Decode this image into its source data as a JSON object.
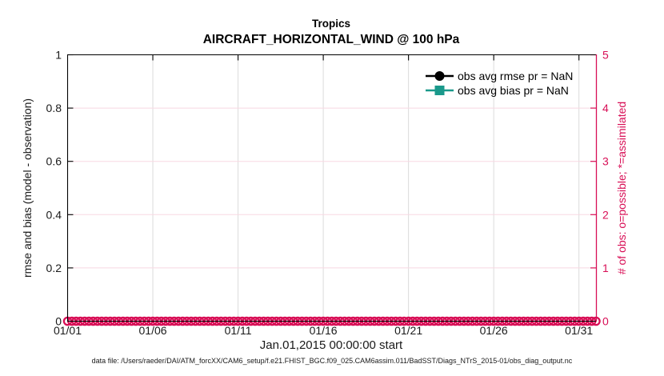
{
  "figure": {
    "title": "Tropics",
    "subtitle": "AIRCRAFT_HORIZONTAL_WIND @ 100 hPa",
    "footer": "data file: /Users/raeder/DAI/ATM_forcXX/CAM6_setup/f.e21.FHIST_BGC.f09_025.CAM6assim.011/BadSST/Diags_NTrS_2015-01/obs_diag_output.nc"
  },
  "chart_data": {
    "type": "line",
    "title": "Tropics",
    "subtitle": "AIRCRAFT_HORIZONTAL_WIND @ 100 hPa",
    "xlabel": "Jan.01,2015 00:00:00 start",
    "x_axis": {
      "tick_labels": [
        "01/01",
        "01/06",
        "01/11",
        "01/16",
        "01/21",
        "01/26",
        "01/31"
      ],
      "tick_days": [
        0,
        5,
        10,
        15,
        20,
        25,
        30
      ],
      "range_days": [
        0,
        31
      ]
    },
    "left_axis": {
      "label": "rmse and bias (model - observation)",
      "ticks": [
        "0",
        "0.2",
        "0.4",
        "0.6",
        "0.8",
        "1"
      ],
      "tick_values": [
        0,
        0.2,
        0.4,
        0.6,
        0.8,
        1
      ],
      "range": [
        0,
        1
      ],
      "color": "#000000"
    },
    "right_axis": {
      "label": "# of obs: o=possible; *=assimilated",
      "ticks": [
        "0",
        "1",
        "2",
        "3",
        "4",
        "5"
      ],
      "tick_values": [
        0,
        1,
        2,
        3,
        4,
        5
      ],
      "range": [
        0,
        5
      ],
      "color": "#D80F56"
    },
    "grid": {
      "vertical_on": true,
      "horizontal_on": true,
      "vertical_color": "#DCDCDC",
      "horizontal_color": "#F8D8E2"
    },
    "legend": {
      "position": "top-right-inside",
      "entries": [
        {
          "label": "obs avg rmse pr = NaN",
          "color": "#000000",
          "marker": "circle"
        },
        {
          "label": "obs avg bias pr = NaN",
          "color": "#1A998B",
          "marker": "square"
        }
      ]
    },
    "series": [
      {
        "name": "obs avg rmse pr = NaN",
        "color": "#000000",
        "marker": "circle",
        "values": "NaN (no line drawn)"
      },
      {
        "name": "obs avg bias pr = NaN",
        "color": "#1A998B",
        "marker": "square",
        "values": "NaN (no line drawn)"
      },
      {
        "name": "possible observation count",
        "color": "#D80F56",
        "marker": "open-circle",
        "y_value": 0,
        "day_start": 0,
        "day_end": 31,
        "points_per_day": 4,
        "note": "dense row of pink open circles along # of obs = 0"
      }
    ]
  }
}
